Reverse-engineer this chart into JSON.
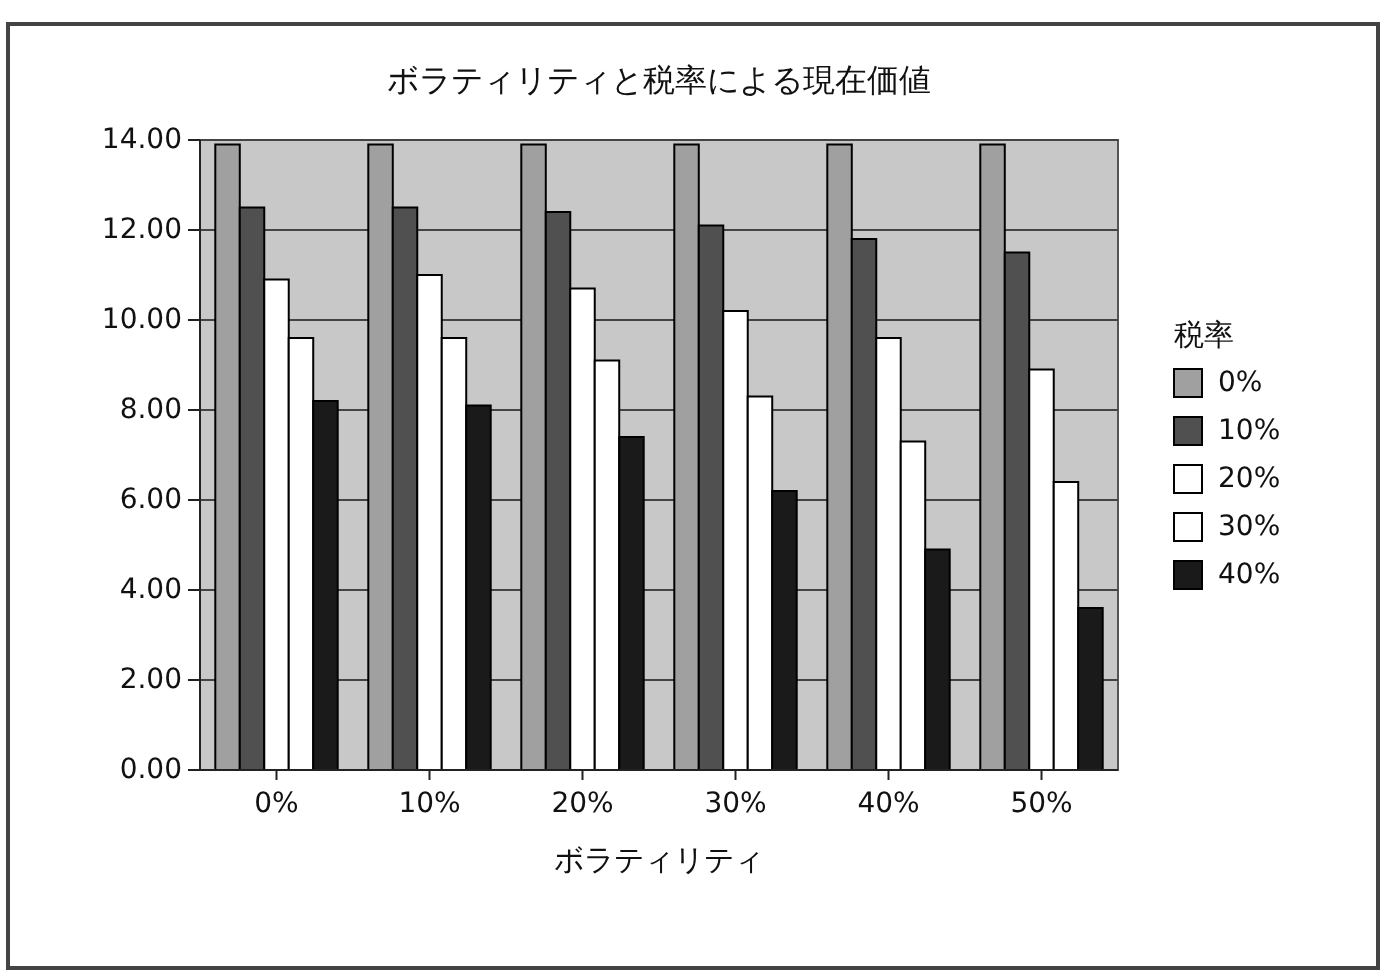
{
  "chart_data": {
    "type": "bar",
    "title": "ボラティリティと税率による現在価値",
    "xlabel": "ボラティリティ",
    "legend_title": "税率",
    "categories": [
      "0%",
      "10%",
      "20%",
      "30%",
      "40%",
      "50%"
    ],
    "series": [
      {
        "name": "0%",
        "color": "#a0a0a0",
        "values": [
          13.9,
          13.9,
          13.9,
          13.9,
          13.9,
          13.9
        ]
      },
      {
        "name": "10%",
        "color": "#505050",
        "values": [
          12.5,
          12.5,
          12.4,
          12.1,
          11.8,
          11.5
        ]
      },
      {
        "name": "20%",
        "color": "#ffffff",
        "values": [
          10.9,
          11.0,
          10.7,
          10.2,
          9.6,
          8.9
        ]
      },
      {
        "name": "30%",
        "color": "#ffffff",
        "values": [
          9.6,
          9.6,
          9.1,
          8.3,
          7.3,
          6.4
        ]
      },
      {
        "name": "40%",
        "color": "#1a1a1a",
        "values": [
          8.2,
          8.1,
          7.4,
          6.2,
          4.9,
          3.6
        ]
      }
    ],
    "ylim": [
      0,
      14
    ],
    "yticks": [
      {
        "value": 0,
        "label": "0.00"
      },
      {
        "value": 2,
        "label": "2.00"
      },
      {
        "value": 4,
        "label": "4.00"
      },
      {
        "value": 6,
        "label": "6.00"
      },
      {
        "value": 8,
        "label": "8.00"
      },
      {
        "value": 10,
        "label": "10.00"
      },
      {
        "value": 12,
        "label": "12.00"
      },
      {
        "value": 14,
        "label": "14.00"
      }
    ],
    "grid": "y",
    "legend": "right"
  }
}
